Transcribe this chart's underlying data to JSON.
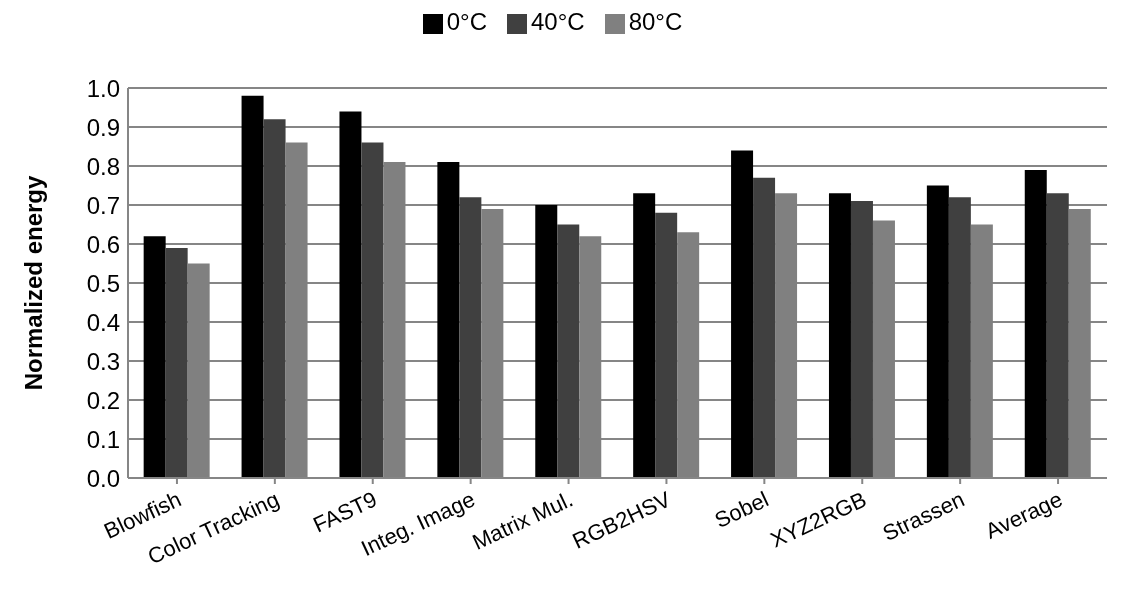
{
  "chart_data": {
    "type": "bar",
    "ylabel": "Normalized energy",
    "categories": [
      "Blowfish",
      "Color Tracking",
      "FAST9",
      "Integ. Image",
      "Matrix Mul.",
      "RGB2HSV",
      "Sobel",
      "XYZ2RGB",
      "Strassen",
      "Average"
    ],
    "series": [
      {
        "name": "0°C",
        "color": "#000000",
        "values": [
          0.62,
          0.98,
          0.94,
          0.81,
          0.7,
          0.73,
          0.84,
          0.73,
          0.75,
          0.79
        ]
      },
      {
        "name": "40°C",
        "color": "#404040",
        "values": [
          0.59,
          0.92,
          0.86,
          0.72,
          0.65,
          0.68,
          0.77,
          0.71,
          0.72,
          0.73
        ]
      },
      {
        "name": "80°C",
        "color": "#808080",
        "values": [
          0.55,
          0.86,
          0.81,
          0.69,
          0.62,
          0.63,
          0.73,
          0.66,
          0.65,
          0.69
        ]
      }
    ],
    "ylim": [
      0,
      1
    ],
    "yticks": [
      {
        "value": 0,
        "label": "0.0"
      },
      {
        "value": 0.1,
        "label": "0.1"
      },
      {
        "value": 0.2,
        "label": "0.2"
      },
      {
        "value": 0.3,
        "label": "0.3"
      },
      {
        "value": 0.4,
        "label": "0.4"
      },
      {
        "value": 0.5,
        "label": "0.5"
      },
      {
        "value": 0.6,
        "label": "0.6"
      },
      {
        "value": 0.7,
        "label": "0.7"
      },
      {
        "value": 0.8,
        "label": "0.8"
      },
      {
        "value": 0.9,
        "label": "0.9"
      },
      {
        "value": 1,
        "label": "1.0"
      }
    ],
    "grid": "y",
    "legend": "top"
  }
}
